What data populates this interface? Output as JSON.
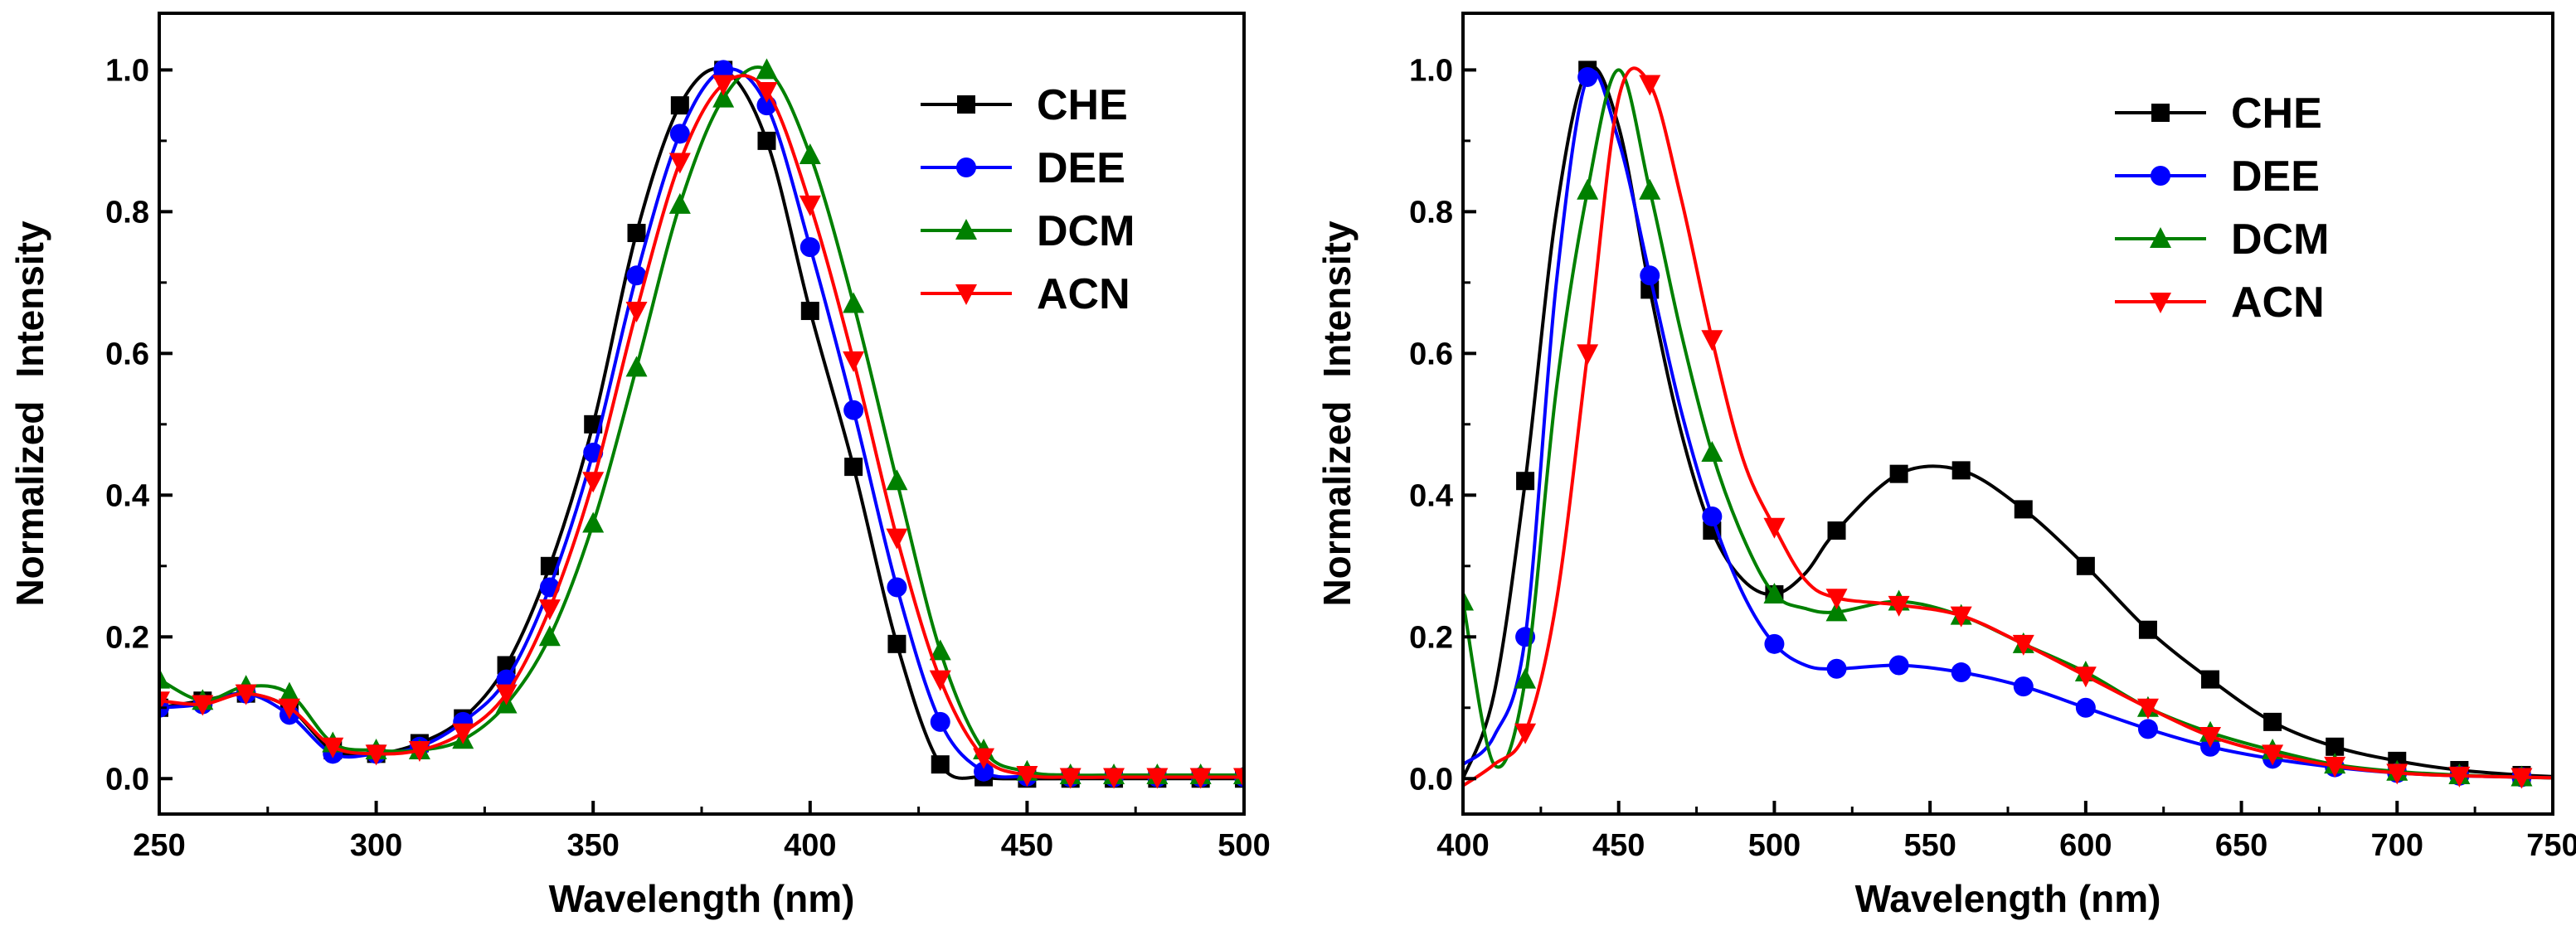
{
  "chart_data": [
    {
      "type": "line",
      "panel": "absorption",
      "title": "",
      "xlabel": "Wavelength (nm)",
      "ylabel_parts": [
        "Normalized",
        "Intensity"
      ],
      "xlim": [
        250,
        500
      ],
      "ylim": [
        -0.05,
        1.08
      ],
      "xticks": [
        250,
        300,
        350,
        400,
        450,
        500
      ],
      "xtick_labels": [
        "250",
        "300",
        "350",
        "400",
        "450",
        "500"
      ],
      "yticks": [
        0.0,
        0.2,
        0.4,
        0.6,
        0.8,
        1.0
      ],
      "ytick_labels": [
        "0.0",
        "0.2",
        "0.4",
        "0.6",
        "0.8",
        "1.0"
      ],
      "grid": false,
      "legend": "top-right",
      "series": [
        {
          "name": "CHE",
          "color": "#000000",
          "marker": "square",
          "x": [
            250,
            260,
            270,
            280,
            290,
            300,
            310,
            320,
            330,
            340,
            350,
            360,
            370,
            380,
            390,
            400,
            410,
            420,
            430,
            440,
            450,
            460,
            470,
            480,
            490,
            500
          ],
          "y": [
            0.1,
            0.11,
            0.12,
            0.1,
            0.04,
            0.035,
            0.05,
            0.085,
            0.16,
            0.3,
            0.5,
            0.77,
            0.95,
            1.0,
            0.9,
            0.66,
            0.44,
            0.19,
            0.02,
            0.002,
            0.0,
            0.0,
            0.0,
            0.0,
            0.0,
            0.0
          ]
        },
        {
          "name": "DEE",
          "color": "#0000ff",
          "marker": "circle",
          "x": [
            250,
            260,
            270,
            280,
            290,
            300,
            310,
            320,
            330,
            340,
            350,
            360,
            370,
            380,
            390,
            400,
            410,
            420,
            430,
            440,
            450,
            460,
            470,
            480,
            490,
            500
          ],
          "y": [
            0.1,
            0.105,
            0.12,
            0.09,
            0.035,
            0.035,
            0.045,
            0.08,
            0.14,
            0.27,
            0.46,
            0.71,
            0.91,
            1.0,
            0.95,
            0.75,
            0.52,
            0.27,
            0.08,
            0.01,
            0.003,
            0.002,
            0.002,
            0.002,
            0.002,
            0.002
          ]
        },
        {
          "name": "DCM",
          "color": "#008000",
          "marker": "triangle-up",
          "x": [
            250,
            260,
            270,
            280,
            290,
            300,
            310,
            320,
            330,
            340,
            350,
            360,
            370,
            380,
            390,
            400,
            410,
            420,
            430,
            440,
            450,
            460,
            470,
            480,
            490,
            500
          ],
          "y": [
            0.14,
            0.11,
            0.13,
            0.12,
            0.05,
            0.04,
            0.04,
            0.055,
            0.105,
            0.2,
            0.36,
            0.58,
            0.81,
            0.96,
            1.0,
            0.88,
            0.67,
            0.42,
            0.18,
            0.04,
            0.01,
            0.005,
            0.005,
            0.005,
            0.005,
            0.005
          ]
        },
        {
          "name": "ACN",
          "color": "#ff0000",
          "marker": "triangle-down",
          "x": [
            250,
            260,
            270,
            280,
            290,
            300,
            310,
            320,
            330,
            340,
            350,
            360,
            370,
            380,
            390,
            400,
            410,
            420,
            430,
            440,
            450,
            460,
            470,
            480,
            490,
            500
          ],
          "y": [
            0.11,
            0.105,
            0.12,
            0.1,
            0.045,
            0.035,
            0.04,
            0.065,
            0.12,
            0.24,
            0.42,
            0.66,
            0.87,
            0.98,
            0.97,
            0.81,
            0.59,
            0.34,
            0.14,
            0.03,
            0.005,
            0.002,
            0.002,
            0.002,
            0.002,
            0.002
          ]
        }
      ]
    },
    {
      "type": "line",
      "panel": "emission",
      "title": "",
      "xlabel": "Wavelength (nm)",
      "ylabel_parts": [
        "Normalized",
        "Intensity"
      ],
      "xlim": [
        400,
        750
      ],
      "ylim": [
        -0.05,
        1.08
      ],
      "xticks": [
        400,
        450,
        500,
        550,
        600,
        650,
        700,
        750
      ],
      "xtick_labels": [
        "400",
        "450",
        "500",
        "550",
        "600",
        "650",
        "700",
        "750"
      ],
      "yticks": [
        0.0,
        0.2,
        0.4,
        0.6,
        0.8,
        1.0
      ],
      "ytick_labels": [
        "0.0",
        "0.2",
        "0.4",
        "0.6",
        "0.8",
        "1.0"
      ],
      "grid": false,
      "legend": "top-right",
      "series": [
        {
          "name": "CHE",
          "color": "#000000",
          "marker": "square",
          "x": [
            400,
            410,
            420,
            430,
            440,
            450,
            460,
            470,
            480,
            490,
            500,
            510,
            520,
            540,
            560,
            580,
            600,
            620,
            640,
            660,
            680,
            700,
            720,
            740,
            750
          ],
          "y": [
            0.0,
            0.12,
            0.42,
            0.8,
            1.0,
            0.92,
            0.69,
            0.49,
            0.35,
            0.28,
            0.26,
            0.29,
            0.35,
            0.43,
            0.435,
            0.38,
            0.3,
            0.21,
            0.14,
            0.08,
            0.045,
            0.025,
            0.012,
            0.005,
            0.003
          ],
          "markers_x": [
            420,
            440,
            460,
            480,
            500,
            520,
            540,
            560,
            580,
            600,
            620,
            640,
            660,
            680,
            700,
            720,
            740
          ]
        },
        {
          "name": "DEE",
          "color": "#0000ff",
          "marker": "circle",
          "x": [
            400,
            410,
            420,
            430,
            440,
            450,
            460,
            470,
            480,
            490,
            500,
            510,
            520,
            540,
            560,
            580,
            600,
            620,
            640,
            660,
            680,
            700,
            720,
            740,
            750
          ],
          "y": [
            0.02,
            0.06,
            0.2,
            0.7,
            0.99,
            0.9,
            0.71,
            0.52,
            0.37,
            0.26,
            0.19,
            0.16,
            0.155,
            0.16,
            0.15,
            0.13,
            0.1,
            0.07,
            0.045,
            0.028,
            0.016,
            0.008,
            0.004,
            0.002,
            0.001
          ],
          "markers_x": [
            420,
            440,
            460,
            480,
            500,
            520,
            540,
            560,
            580,
            600,
            620,
            640,
            660,
            680,
            700,
            720,
            740
          ]
        },
        {
          "name": "DCM",
          "color": "#008000",
          "marker": "triangle-up",
          "x": [
            400,
            410,
            420,
            430,
            440,
            450,
            460,
            470,
            480,
            490,
            500,
            510,
            520,
            540,
            560,
            580,
            600,
            620,
            640,
            660,
            680,
            700,
            720,
            740,
            750
          ],
          "y": [
            0.25,
            0.02,
            0.14,
            0.55,
            0.83,
            1.0,
            0.83,
            0.63,
            0.46,
            0.34,
            0.26,
            0.24,
            0.235,
            0.25,
            0.23,
            0.19,
            0.15,
            0.1,
            0.065,
            0.04,
            0.02,
            0.01,
            0.005,
            0.002,
            0.001
          ],
          "markers_x": [
            400,
            420,
            440,
            460,
            480,
            500,
            520,
            540,
            560,
            580,
            600,
            620,
            640,
            660,
            680,
            700,
            720,
            740
          ]
        },
        {
          "name": "ACN",
          "color": "#ff0000",
          "marker": "triangle-down",
          "x": [
            400,
            410,
            420,
            430,
            440,
            450,
            460,
            470,
            480,
            490,
            500,
            510,
            520,
            540,
            560,
            580,
            600,
            620,
            640,
            660,
            680,
            700,
            720,
            740,
            750
          ],
          "y": [
            -0.01,
            0.02,
            0.065,
            0.25,
            0.6,
            0.96,
            0.98,
            0.82,
            0.62,
            0.45,
            0.355,
            0.28,
            0.255,
            0.245,
            0.23,
            0.19,
            0.145,
            0.1,
            0.06,
            0.035,
            0.018,
            0.008,
            0.004,
            0.002,
            0.001
          ],
          "markers_x": [
            420,
            440,
            460,
            480,
            500,
            520,
            540,
            560,
            580,
            600,
            620,
            640,
            660,
            680,
            700,
            720,
            740
          ]
        }
      ]
    }
  ]
}
